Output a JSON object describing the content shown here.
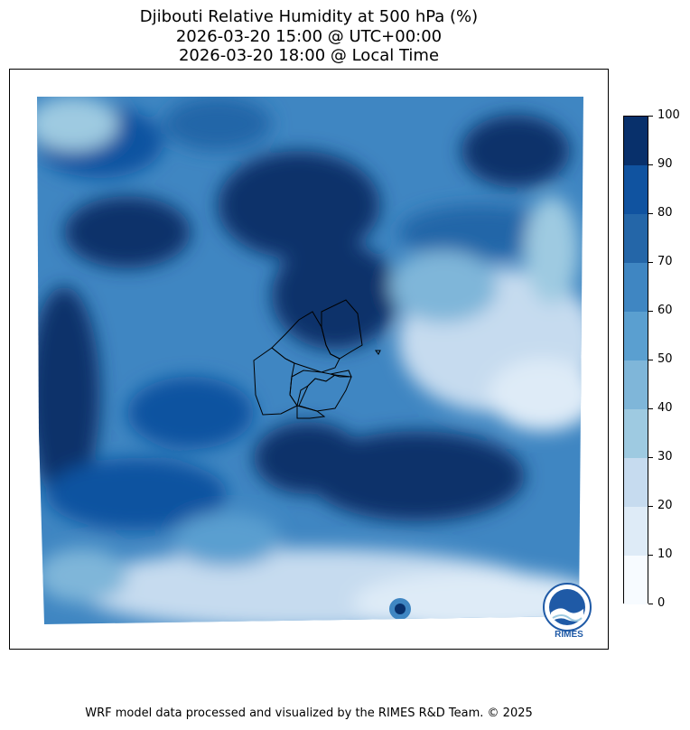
{
  "title_line1": "Djibouti Relative Humidity at 500 hPa (%)",
  "title_line2": "2026-03-20 15:00 @ UTC+00:00",
  "title_line3": "2026-03-20 18:00 @ Local Time",
  "colorbar": {
    "ticks": [
      "0",
      "10",
      "20",
      "30",
      "40",
      "50",
      "60",
      "70",
      "80",
      "90",
      "100"
    ],
    "colors": [
      "#f7fbff",
      "#deebf7",
      "#c6dbef",
      "#9ecae1",
      "#7fb6d9",
      "#5a9fd0",
      "#3f86c2",
      "#2466a8",
      "#1053a0",
      "#08306b"
    ]
  },
  "map": {
    "region": "Djibouti",
    "variable": "Relative Humidity",
    "level": "500 hPa",
    "units": "%"
  },
  "logo_text": "RIMES",
  "footer": "WRF model data processed and visualized by the RIMES R&D Team. © 2025"
}
